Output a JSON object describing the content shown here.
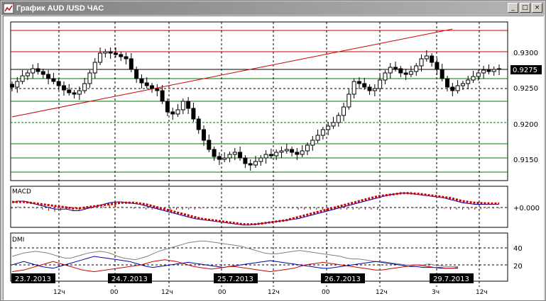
{
  "window": {
    "title": "График AUD /USD ЧАС",
    "buttons": {
      "minimize": "_",
      "maximize": "□",
      "close": "×"
    }
  },
  "colors": {
    "bg": "#ffffff",
    "grid": "#000000",
    "candle": "#000000",
    "red_line": "#cc0000",
    "green_line": "#007700",
    "blue_line": "#0000aa",
    "gray_line": "#808080"
  },
  "price_axis": {
    "labels": [
      "0.9300",
      "0.9250",
      "0.9200",
      "0.9150"
    ],
    "current_price": "0.9275"
  },
  "macd": {
    "label": "MACD",
    "axis_label": "+0.000"
  },
  "dmi": {
    "label": "DMI",
    "axis_labels": [
      "40",
      "20"
    ]
  },
  "time_axis": {
    "tick_labels": [
      "12ч",
      "00",
      "12ч",
      "00",
      "12ч",
      "00",
      "12ч",
      "3ч",
      "12ч"
    ]
  },
  "date_labels": [
    "23.7.2013",
    "24.7.2013",
    "25.7.2013",
    "26.7.2013",
    "29.7.2013"
  ],
  "chart_data": {
    "type": "candlestick",
    "title": "График AUD /USD ЧАС",
    "ylim": [
      0.912,
      0.934
    ],
    "horizontal_levels": [
      0.933,
      0.93,
      0.9275,
      0.9262,
      0.9248,
      0.923,
      0.92,
      0.917,
      0.915,
      0.913
    ],
    "trendline": [
      [
        0,
        0.9208
      ],
      [
        85,
        0.9332
      ]
    ],
    "closes": [
      0.925,
      0.9258,
      0.9266,
      0.927,
      0.9276,
      0.9272,
      0.9268,
      0.9262,
      0.9258,
      0.9252,
      0.9246,
      0.9242,
      0.924,
      0.9245,
      0.9255,
      0.927,
      0.9285,
      0.9298,
      0.93,
      0.9298,
      0.9296,
      0.9293,
      0.929,
      0.9275,
      0.9262,
      0.9256,
      0.9252,
      0.9248,
      0.9245,
      0.923,
      0.9215,
      0.9212,
      0.9218,
      0.923,
      0.922,
      0.9205,
      0.919,
      0.9175,
      0.9162,
      0.9152,
      0.9148,
      0.915,
      0.9155,
      0.9158,
      0.915,
      0.9142,
      0.914,
      0.9145,
      0.915,
      0.9155,
      0.9153,
      0.9158,
      0.916,
      0.9162,
      0.9158,
      0.9155,
      0.916,
      0.9168,
      0.9175,
      0.9182,
      0.919,
      0.9195,
      0.92,
      0.921,
      0.9222,
      0.924,
      0.9258,
      0.9255,
      0.925,
      0.9245,
      0.9248,
      0.926,
      0.927,
      0.9278,
      0.9276,
      0.927,
      0.9268,
      0.9272,
      0.928,
      0.929,
      0.9294,
      0.9285,
      0.9275,
      0.9262,
      0.925,
      0.9245,
      0.9252,
      0.9255,
      0.926,
      0.9265,
      0.927,
      0.9274,
      0.9272,
      0.9275,
      0.9276
    ],
    "macd_line": [
      0.3,
      0.4,
      0.4,
      0.3,
      0.2,
      0.1,
      0.0,
      -0.1,
      -0.1,
      -0.1,
      -0.2,
      -0.2,
      -0.1,
      0.0,
      0.1,
      0.2,
      0.3,
      0.35,
      0.35,
      0.3,
      0.25,
      0.2,
      0.1,
      0.0,
      -0.1,
      -0.2,
      -0.3,
      -0.4,
      -0.5,
      -0.6,
      -0.7,
      -0.75,
      -0.8,
      -0.85,
      -0.9,
      -0.95,
      -1.0,
      -1.05,
      -1.1,
      -1.1,
      -1.05,
      -1.0,
      -0.95,
      -0.9,
      -0.85,
      -0.8,
      -0.75,
      -0.7,
      -0.6,
      -0.5,
      -0.4,
      -0.3,
      -0.2,
      -0.1,
      0.0,
      0.1,
      0.2,
      0.3,
      0.4,
      0.5,
      0.6,
      0.7,
      0.8,
      0.85,
      0.9,
      0.9,
      0.85,
      0.8,
      0.75,
      0.7,
      0.65,
      0.6,
      0.5,
      0.4,
      0.3,
      0.25,
      0.2,
      0.2,
      0.2,
      0.2,
      0.2
    ],
    "signal_line": [
      0.35,
      0.35,
      0.35,
      0.3,
      0.25,
      0.2,
      0.15,
      0.1,
      0.05,
      0.0,
      -0.05,
      -0.05,
      0.0,
      0.05,
      0.1,
      0.15,
      0.2,
      0.25,
      0.3,
      0.3,
      0.3,
      0.25,
      0.2,
      0.1,
      0.0,
      -0.1,
      -0.2,
      -0.3,
      -0.4,
      -0.5,
      -0.6,
      -0.7,
      -0.75,
      -0.8,
      -0.85,
      -0.9,
      -0.95,
      -1.0,
      -1.05,
      -1.05,
      -1.05,
      -1.0,
      -0.95,
      -0.9,
      -0.85,
      -0.8,
      -0.7,
      -0.6,
      -0.5,
      -0.4,
      -0.3,
      -0.2,
      -0.1,
      0.0,
      0.1,
      0.2,
      0.3,
      0.4,
      0.5,
      0.6,
      0.7,
      0.75,
      0.8,
      0.85,
      0.9,
      0.9,
      0.88,
      0.85,
      0.8,
      0.75,
      0.7,
      0.65,
      0.6,
      0.5,
      0.4,
      0.35,
      0.3,
      0.28,
      0.26,
      0.25,
      0.25
    ],
    "dmi_adx": [
      30,
      32,
      34,
      35,
      36,
      35,
      34,
      32,
      30,
      28,
      28,
      30,
      32,
      34,
      35,
      36,
      35,
      33,
      30,
      28,
      27,
      26,
      28,
      30,
      33,
      36,
      38,
      40,
      42,
      44,
      46,
      47,
      48,
      48,
      47,
      46,
      45,
      44,
      43,
      42,
      40,
      38,
      36,
      34,
      33,
      33,
      34,
      35,
      36,
      37,
      36,
      35,
      34,
      33,
      32,
      31,
      30,
      28,
      27,
      27,
      26,
      25,
      24,
      24,
      23,
      22,
      21,
      20,
      20,
      20,
      20,
      21,
      20,
      19,
      18,
      18,
      18
    ],
    "dmi_plus": [
      20,
      22,
      24,
      22,
      20,
      18,
      17,
      16,
      18,
      20,
      22,
      24,
      26,
      28,
      30,
      29,
      28,
      27,
      26,
      25,
      24,
      22,
      20,
      18,
      17,
      18,
      19,
      20,
      21,
      22,
      23,
      22,
      21,
      20,
      19,
      18,
      17,
      18,
      19,
      20,
      21,
      22,
      23,
      24,
      25,
      24,
      23,
      22,
      21,
      20,
      19,
      18,
      17,
      16,
      16,
      17,
      18,
      19,
      20,
      21,
      22,
      23,
      24,
      23,
      22,
      21,
      20,
      19,
      18,
      18,
      17,
      17,
      17,
      16,
      16,
      16,
      16
    ],
    "dmi_minus": [
      12,
      13,
      14,
      16,
      18,
      20,
      22,
      24,
      22,
      20,
      18,
      16,
      14,
      13,
      12,
      13,
      14,
      15,
      16,
      17,
      18,
      19,
      20,
      22,
      24,
      25,
      26,
      25,
      24,
      22,
      20,
      18,
      17,
      16,
      15,
      16,
      17,
      18,
      18,
      17,
      16,
      15,
      14,
      13,
      12,
      13,
      14,
      15,
      16,
      18,
      20,
      21,
      22,
      23,
      22,
      21,
      20,
      19,
      18,
      17,
      16,
      15,
      14,
      14,
      15,
      16,
      17,
      18,
      19,
      20,
      19,
      18,
      17,
      17,
      16,
      16,
      17
    ]
  }
}
